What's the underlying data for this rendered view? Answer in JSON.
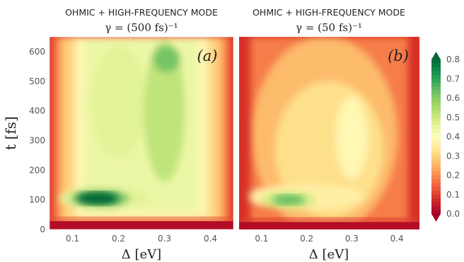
{
  "chart_data": [
    {
      "type": "heatmap",
      "title": "OHMIC + HIGH-FREQUENCY MODE",
      "subtitle": "γ = (500 fs)⁻¹",
      "panel_label": "(a)",
      "xlabel": "Δ [eV]",
      "ylabel": "t [fs]",
      "xlim": [
        0.05,
        0.45
      ],
      "ylim": [
        0,
        650
      ],
      "xticks": [
        0.1,
        0.2,
        0.3,
        0.4
      ],
      "yticks": [
        0,
        100,
        200,
        300,
        400,
        500,
        600
      ],
      "features": [
        {
          "x": 0.155,
          "y": 105,
          "value": 0.8
        },
        {
          "x": 0.305,
          "y": 580,
          "value": 0.6
        },
        {
          "x": 0.3,
          "y": 350,
          "value": 0.55
        },
        {
          "x": 0.22,
          "y": 400,
          "value": 0.45
        }
      ]
    },
    {
      "type": "heatmap",
      "title": "OHMIC + HIGH-FREQUENCY MODE",
      "subtitle": "γ = (50 fs)⁻¹",
      "panel_label": "(b)",
      "xlabel": "Δ [eV]",
      "ylabel": "",
      "xlim": [
        0.05,
        0.45
      ],
      "ylim": [
        0,
        650
      ],
      "xticks": [
        0.1,
        0.2,
        0.3,
        0.4
      ],
      "yticks": [
        0,
        100,
        200,
        300,
        400,
        500,
        600
      ],
      "features": [
        {
          "x": 0.16,
          "y": 100,
          "value": 0.62
        },
        {
          "x": 0.3,
          "y": 290,
          "value": 0.35
        },
        {
          "x": 0.27,
          "y": 400,
          "value": 0.25
        }
      ]
    }
  ],
  "colorbar": {
    "colormap": "RdYlGn",
    "min": 0.0,
    "max": 0.8,
    "extend": "both",
    "ticks": [
      0.0,
      0.1,
      0.2,
      0.3,
      0.4,
      0.5,
      0.6,
      0.7,
      0.8
    ],
    "tick_labels": [
      "0.0",
      "0.1",
      "0.2",
      "0.3",
      "0.4",
      "0.5",
      "0.6",
      "0.7",
      "0.8"
    ]
  },
  "colors": {
    "low": "#a50026",
    "mid": "#ffffbf",
    "high": "#006837"
  }
}
